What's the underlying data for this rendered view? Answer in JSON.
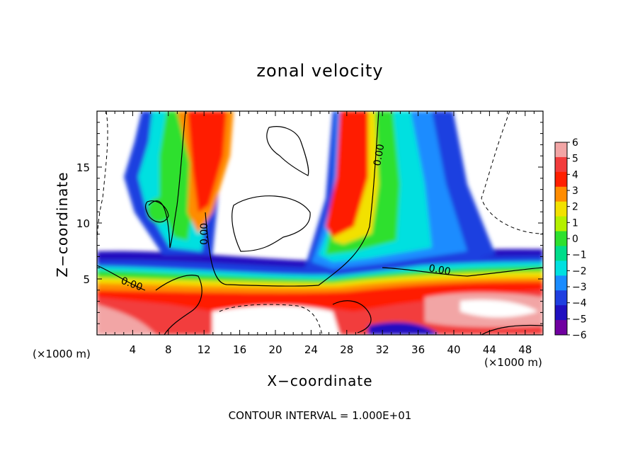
{
  "chart_data": {
    "type": "heatmap",
    "title": "zonal velocity",
    "xlabel": "X−coordinate",
    "ylabel": "Z−coordinate",
    "x_unit": "(×1000 m)",
    "y_unit": "(×1000 m)",
    "xlim": [
      0,
      50
    ],
    "ylim": [
      0,
      20
    ],
    "x_ticks": [
      4,
      8,
      12,
      16,
      20,
      24,
      28,
      32,
      36,
      40,
      44,
      48
    ],
    "y_ticks": [
      5,
      10,
      15
    ],
    "colorbar": {
      "levels": [
        6,
        5,
        4,
        3,
        2,
        1,
        0,
        -1,
        -2,
        -3,
        -4,
        -5,
        -6
      ],
      "labels": [
        "6",
        "5",
        "4",
        "3",
        "2",
        "1",
        "0",
        "−1",
        "−2",
        "−3",
        "−4",
        "−5",
        "−6"
      ],
      "colors": [
        "#f2a5a5",
        "#f23c3c",
        "#ff1f00",
        "#ff8c00",
        "#f2e100",
        "#b4f000",
        "#2ee02e",
        "#00dd8a",
        "#00e0e0",
        "#1a8cff",
        "#1f3fe0",
        "#2010c0",
        "#7000a0"
      ]
    },
    "contour_labels": [
      "0.00",
      "0.00",
      "0.00",
      "0.00"
    ],
    "contour_interval_text": "CONTOUR INTERVAL = 1.000E+01",
    "grid": false
  }
}
